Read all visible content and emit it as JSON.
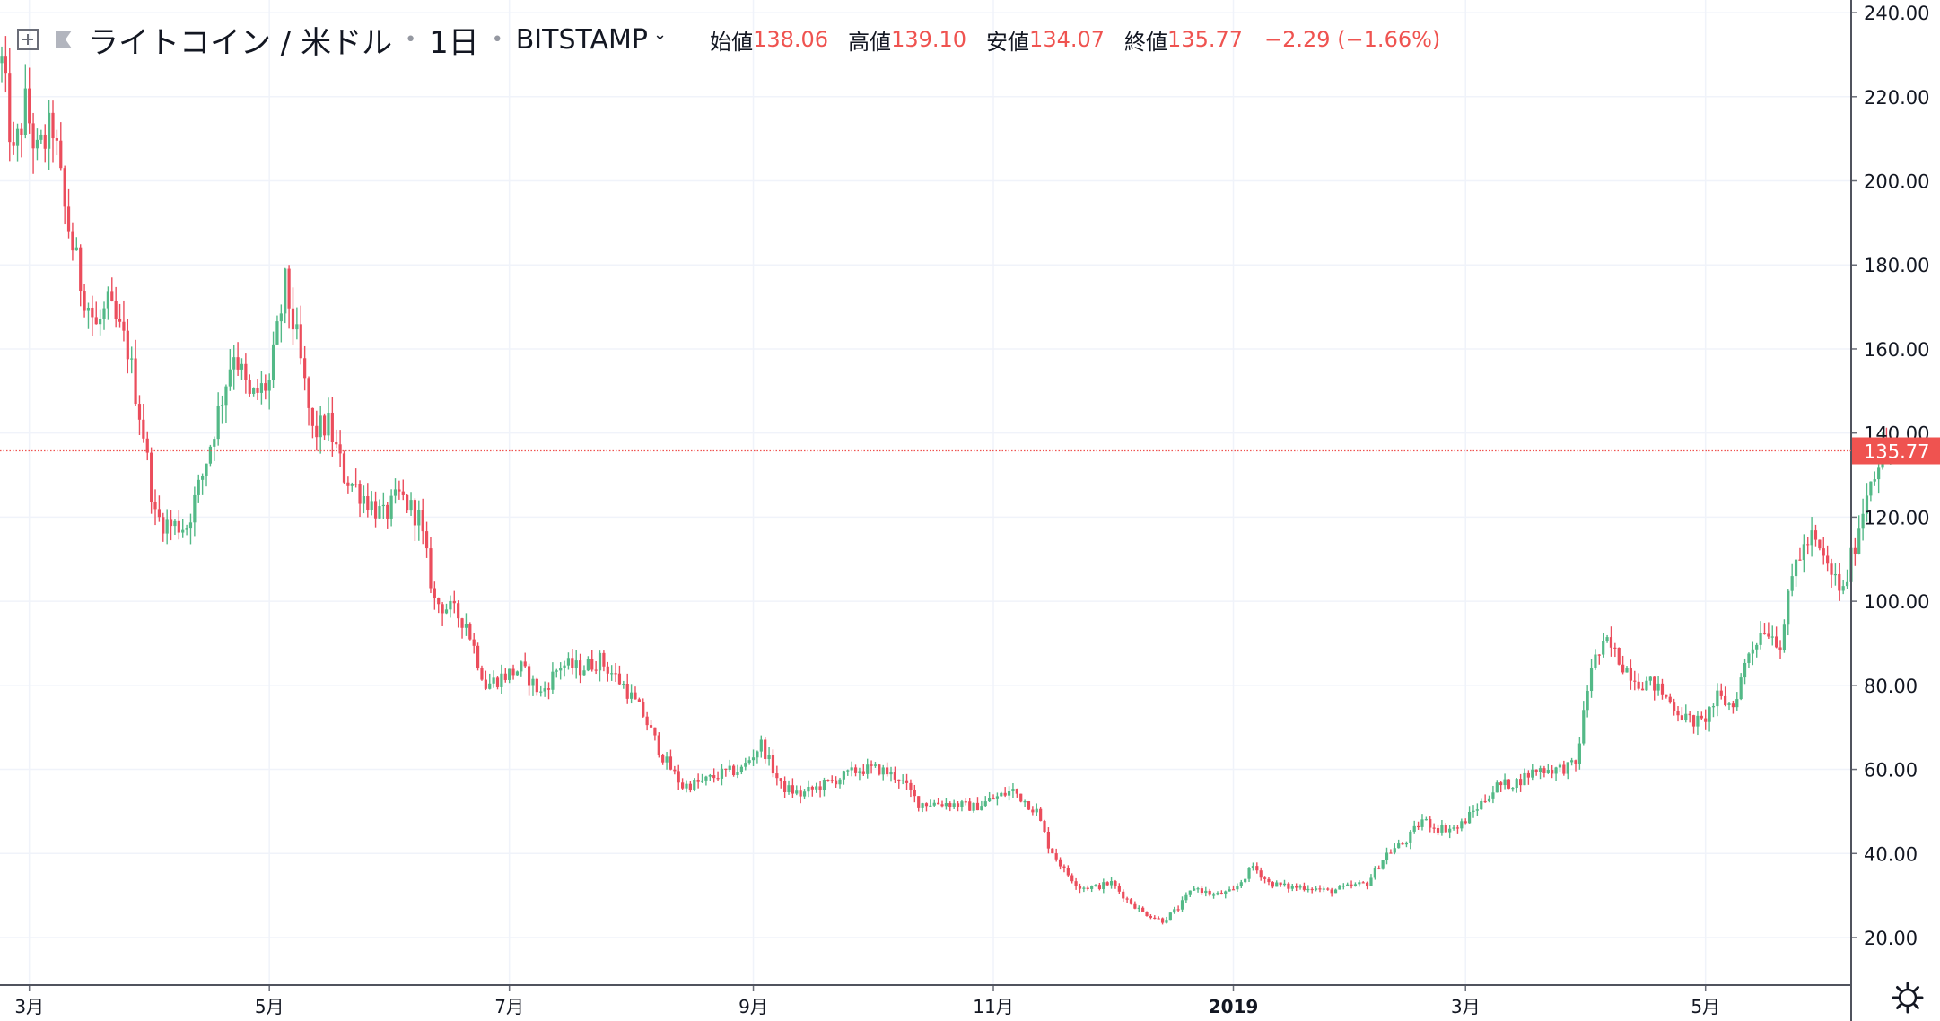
{
  "legend": {
    "symbol": "ライトコイン / 米ドル",
    "interval": "1日",
    "exchange": "BITSTAMP",
    "open_label": "始値",
    "open": "138.06",
    "high_label": "高値",
    "high": "139.10",
    "low_label": "安値",
    "low": "134.07",
    "close_label": "終値",
    "close": "135.77",
    "change": "−2.29 (−1.66%)"
  },
  "colors": {
    "up": "#53b987",
    "down": "#eb4d5c",
    "price_line": "#ef5350",
    "grid": "#f0f3fa",
    "axis_text": "#131722"
  },
  "icons": [
    "expand-icon",
    "flag-icon",
    "chevron-down-icon",
    "settings-gear-icon"
  ],
  "chart_data": {
    "type": "candlestick",
    "timeframe": "1D",
    "ylim": [
      13,
      243
    ],
    "y_ticks": [
      "20.00",
      "40.00",
      "60.00",
      "80.00",
      "100.00",
      "120.00",
      "140.00",
      "160.00",
      "180.00",
      "200.00",
      "220.00",
      "240.00"
    ],
    "x_ticks": [
      {
        "date": "2018-03-01",
        "label": "3月"
      },
      {
        "date": "2018-05-01",
        "label": "5月"
      },
      {
        "date": "2018-07-01",
        "label": "7月"
      },
      {
        "date": "2018-09-01",
        "label": "9月"
      },
      {
        "date": "2018-11-01",
        "label": "11月"
      },
      {
        "date": "2019-01-01",
        "label": "2019"
      },
      {
        "date": "2019-03-01",
        "label": "3月"
      },
      {
        "date": "2019-05-01",
        "label": "5月"
      }
    ],
    "last_price": "135.77",
    "trend": [
      [
        "2018-02-22",
        228
      ],
      [
        "2018-02-25",
        205
      ],
      [
        "2018-02-28",
        218
      ],
      [
        "2018-03-03",
        206
      ],
      [
        "2018-03-07",
        213
      ],
      [
        "2018-03-10",
        193
      ],
      [
        "2018-03-14",
        176
      ],
      [
        "2018-03-18",
        165
      ],
      [
        "2018-03-21",
        170
      ],
      [
        "2018-03-26",
        160
      ],
      [
        "2018-03-30",
        140
      ],
      [
        "2018-04-02",
        120
      ],
      [
        "2018-04-06",
        118
      ],
      [
        "2018-04-10",
        118
      ],
      [
        "2018-04-14",
        130
      ],
      [
        "2018-04-18",
        145
      ],
      [
        "2018-04-22",
        160
      ],
      [
        "2018-04-26",
        148
      ],
      [
        "2018-05-01",
        152
      ],
      [
        "2018-05-05",
        175
      ],
      [
        "2018-05-08",
        162
      ],
      [
        "2018-05-12",
        140
      ],
      [
        "2018-05-16",
        142
      ],
      [
        "2018-05-20",
        130
      ],
      [
        "2018-05-25",
        125
      ],
      [
        "2018-05-30",
        120
      ],
      [
        "2018-06-03",
        125
      ],
      [
        "2018-06-08",
        120
      ],
      [
        "2018-06-12",
        100
      ],
      [
        "2018-06-16",
        98
      ],
      [
        "2018-06-20",
        95
      ],
      [
        "2018-06-25",
        80
      ],
      [
        "2018-06-29",
        82
      ],
      [
        "2018-07-04",
        84
      ],
      [
        "2018-07-09",
        78
      ],
      [
        "2018-07-14",
        85
      ],
      [
        "2018-07-19",
        84
      ],
      [
        "2018-07-24",
        86
      ],
      [
        "2018-07-30",
        80
      ],
      [
        "2018-08-04",
        73
      ],
      [
        "2018-08-09",
        63
      ],
      [
        "2018-08-14",
        56
      ],
      [
        "2018-08-19",
        57
      ],
      [
        "2018-08-24",
        59
      ],
      [
        "2018-08-29",
        60
      ],
      [
        "2018-09-03",
        66
      ],
      [
        "2018-09-08",
        56
      ],
      [
        "2018-09-13",
        54
      ],
      [
        "2018-09-18",
        56
      ],
      [
        "2018-09-23",
        58
      ],
      [
        "2018-09-28",
        60
      ],
      [
        "2018-10-03",
        60
      ],
      [
        "2018-10-08",
        58
      ],
      [
        "2018-10-13",
        52
      ],
      [
        "2018-10-20",
        52
      ],
      [
        "2018-10-27",
        51
      ],
      [
        "2018-11-01",
        53
      ],
      [
        "2018-11-06",
        55
      ],
      [
        "2018-11-12",
        50
      ],
      [
        "2018-11-15",
        42
      ],
      [
        "2018-11-19",
        36
      ],
      [
        "2018-11-23",
        32
      ],
      [
        "2018-11-27",
        32
      ],
      [
        "2018-12-01",
        33
      ],
      [
        "2018-12-05",
        29
      ],
      [
        "2018-12-09",
        26
      ],
      [
        "2018-12-14",
        24
      ],
      [
        "2018-12-18",
        27
      ],
      [
        "2018-12-22",
        32
      ],
      [
        "2018-12-27",
        30
      ],
      [
        "2019-01-01",
        31
      ],
      [
        "2019-01-06",
        37
      ],
      [
        "2019-01-10",
        33
      ],
      [
        "2019-01-15",
        32
      ],
      [
        "2019-01-20",
        32
      ],
      [
        "2019-01-25",
        31
      ],
      [
        "2019-01-30",
        32
      ],
      [
        "2019-02-04",
        33
      ],
      [
        "2019-02-09",
        40
      ],
      [
        "2019-02-14",
        43
      ],
      [
        "2019-02-18",
        48
      ],
      [
        "2019-02-22",
        46
      ],
      [
        "2019-02-27",
        46
      ],
      [
        "2019-03-04",
        51
      ],
      [
        "2019-03-09",
        56
      ],
      [
        "2019-03-14",
        57
      ],
      [
        "2019-03-19",
        60
      ],
      [
        "2019-03-24",
        60
      ],
      [
        "2019-03-29",
        61
      ],
      [
        "2019-04-02",
        85
      ],
      [
        "2019-04-06",
        90
      ],
      [
        "2019-04-10",
        85
      ],
      [
        "2019-04-14",
        81
      ],
      [
        "2019-04-18",
        80
      ],
      [
        "2019-04-22",
        76
      ],
      [
        "2019-04-26",
        72
      ],
      [
        "2019-04-30",
        71
      ],
      [
        "2019-05-04",
        77
      ],
      [
        "2019-05-08",
        75
      ],
      [
        "2019-05-12",
        88
      ],
      [
        "2019-05-16",
        94
      ],
      [
        "2019-05-20",
        90
      ],
      [
        "2019-05-24",
        110
      ],
      [
        "2019-05-28",
        115
      ],
      [
        "2019-06-01",
        108
      ],
      [
        "2019-06-05",
        102
      ],
      [
        "2019-06-09",
        118
      ],
      [
        "2019-06-12",
        130
      ],
      [
        "2019-06-15",
        135
      ],
      [
        "2019-06-18",
        136
      ]
    ]
  }
}
